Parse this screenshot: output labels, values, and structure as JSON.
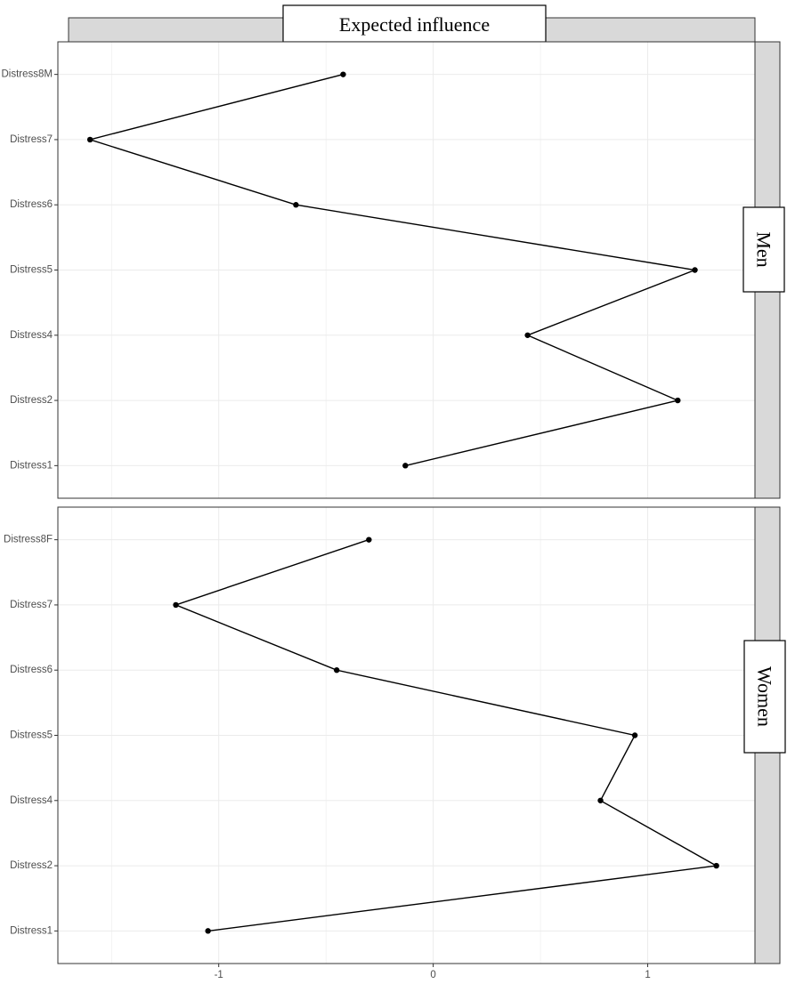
{
  "chart_data": {
    "type": "line",
    "title": "Expected influence",
    "xlabel": "",
    "ylabel": "",
    "xlim": [
      -1.75,
      1.5
    ],
    "x_ticks": [
      "-1",
      "0",
      "1"
    ],
    "x_tick_values": [
      -1,
      0,
      1
    ],
    "grid": true,
    "colors": {
      "line": "#000000",
      "point": "#000000",
      "grid": "#ebebeb",
      "strip": "#d9d9d9"
    },
    "panels": [
      {
        "name": "Men",
        "categories": [
          "Distress1",
          "Distress2",
          "Distress4",
          "Distress5",
          "Distress6",
          "Distress7",
          "Distress8M"
        ],
        "values": [
          -0.13,
          1.14,
          0.44,
          1.22,
          -0.64,
          -1.6,
          -0.42
        ]
      },
      {
        "name": "Women",
        "categories": [
          "Distress1",
          "Distress2",
          "Distress4",
          "Distress5",
          "Distress6",
          "Distress7",
          "Distress8F"
        ],
        "values": [
          -1.05,
          1.32,
          0.78,
          0.94,
          -0.45,
          -1.2,
          -0.3
        ]
      }
    ]
  }
}
